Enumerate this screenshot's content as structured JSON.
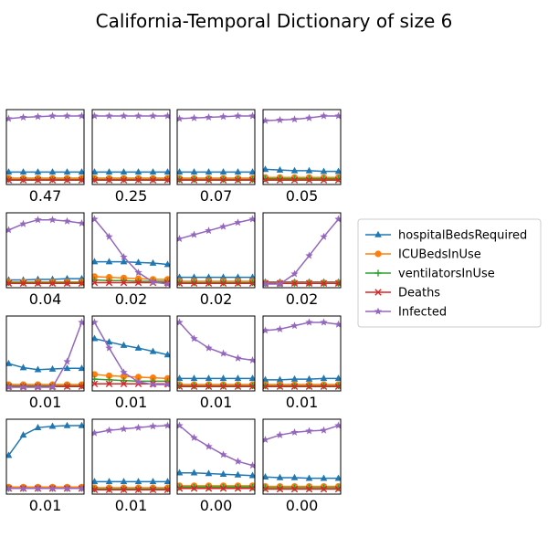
{
  "chart_data": {
    "type": "line",
    "title": "California-Temporal Dictionary of size 6",
    "legend_position": "right",
    "legend": [
      {
        "name": "hospitalBedsRequired",
        "color": "#1f77b4",
        "marker": "triangle"
      },
      {
        "name": "ICUBedsInUse",
        "color": "#ff7f0e",
        "marker": "circle"
      },
      {
        "name": "ventilatorsInUse",
        "color": "#2ca02c",
        "marker": "plus"
      },
      {
        "name": "Deaths",
        "color": "#d62728",
        "marker": "x"
      },
      {
        "name": "Infected",
        "color": "#9467bd",
        "marker": "star"
      }
    ],
    "x": [
      0,
      1,
      2,
      3,
      4,
      5
    ],
    "ylim": [
      0,
      1
    ],
    "panels": [
      {
        "label": "0.47",
        "series": [
          [
            0.13,
            0.13,
            0.13,
            0.13,
            0.13,
            0.13
          ],
          [
            0.04,
            0.04,
            0.04,
            0.04,
            0.04,
            0.04
          ],
          [
            0.02,
            0.02,
            0.02,
            0.02,
            0.02,
            0.02
          ],
          [
            0.01,
            0.01,
            0.01,
            0.01,
            0.01,
            0.01
          ],
          [
            0.92,
            0.94,
            0.95,
            0.96,
            0.96,
            0.96
          ]
        ]
      },
      {
        "label": "0.25",
        "series": [
          [
            0.13,
            0.13,
            0.13,
            0.13,
            0.13,
            0.13
          ],
          [
            0.04,
            0.04,
            0.04,
            0.04,
            0.04,
            0.04
          ],
          [
            0.02,
            0.02,
            0.02,
            0.02,
            0.02,
            0.02
          ],
          [
            0.01,
            0.01,
            0.01,
            0.01,
            0.01,
            0.01
          ],
          [
            0.96,
            0.96,
            0.96,
            0.96,
            0.96,
            0.96
          ]
        ]
      },
      {
        "label": "0.07",
        "series": [
          [
            0.13,
            0.13,
            0.13,
            0.13,
            0.13,
            0.13
          ],
          [
            0.04,
            0.04,
            0.04,
            0.04,
            0.04,
            0.04
          ],
          [
            0.02,
            0.02,
            0.02,
            0.02,
            0.02,
            0.02
          ],
          [
            0.01,
            0.01,
            0.01,
            0.01,
            0.01,
            0.01
          ],
          [
            0.92,
            0.93,
            0.94,
            0.95,
            0.96,
            0.96
          ]
        ]
      },
      {
        "label": "0.05",
        "series": [
          [
            0.17,
            0.16,
            0.15,
            0.15,
            0.14,
            0.14
          ],
          [
            0.05,
            0.05,
            0.05,
            0.05,
            0.05,
            0.05
          ],
          [
            0.03,
            0.03,
            0.03,
            0.03,
            0.03,
            0.03
          ],
          [
            0.01,
            0.01,
            0.01,
            0.01,
            0.01,
            0.01
          ],
          [
            0.89,
            0.9,
            0.91,
            0.93,
            0.96,
            0.96
          ]
        ]
      },
      {
        "label": "0.04",
        "series": [
          [
            0.06,
            0.06,
            0.07,
            0.07,
            0.08,
            0.08
          ],
          [
            0.03,
            0.03,
            0.03,
            0.03,
            0.03,
            0.03
          ],
          [
            0.02,
            0.02,
            0.02,
            0.02,
            0.02,
            0.02
          ],
          [
            0.01,
            0.01,
            0.01,
            0.01,
            0.01,
            0.01
          ],
          [
            0.8,
            0.89,
            0.95,
            0.95,
            0.93,
            0.9
          ]
        ]
      },
      {
        "label": "0.02",
        "series": [
          [
            0.33,
            0.33,
            0.33,
            0.32,
            0.31,
            0.29
          ],
          [
            0.11,
            0.1,
            0.09,
            0.08,
            0.07,
            0.07
          ],
          [
            0.06,
            0.05,
            0.05,
            0.04,
            0.04,
            0.04
          ],
          [
            0.02,
            0.02,
            0.02,
            0.02,
            0.02,
            0.02
          ],
          [
            0.96,
            0.7,
            0.4,
            0.17,
            0.03,
            0.0
          ]
        ]
      },
      {
        "label": "0.02",
        "series": [
          [
            0.1,
            0.1,
            0.1,
            0.1,
            0.1,
            0.1
          ],
          [
            0.04,
            0.04,
            0.04,
            0.04,
            0.04,
            0.04
          ],
          [
            0.02,
            0.02,
            0.02,
            0.02,
            0.02,
            0.02
          ],
          [
            0.01,
            0.01,
            0.01,
            0.01,
            0.01,
            0.01
          ],
          [
            0.67,
            0.73,
            0.79,
            0.85,
            0.91,
            0.96
          ]
        ]
      },
      {
        "label": "0.02",
        "series": [
          [
            0.03,
            0.03,
            0.03,
            0.03,
            0.03,
            0.03
          ],
          [
            0.02,
            0.02,
            0.02,
            0.02,
            0.02,
            0.02
          ],
          [
            0.01,
            0.01,
            0.01,
            0.01,
            0.01,
            0.01
          ],
          [
            0.01,
            0.01,
            0.01,
            0.01,
            0.01,
            0.01
          ],
          [
            0.0,
            0.0,
            0.15,
            0.42,
            0.7,
            0.96
          ]
        ]
      },
      {
        "label": "0.01",
        "series": [
          [
            0.35,
            0.29,
            0.26,
            0.27,
            0.28,
            0.28
          ],
          [
            0.04,
            0.04,
            0.04,
            0.04,
            0.04,
            0.04
          ],
          [
            0.02,
            0.02,
            0.02,
            0.02,
            0.02,
            0.02
          ],
          [
            0.01,
            0.01,
            0.01,
            0.01,
            0.01,
            0.01
          ],
          [
            0.0,
            0.0,
            0.0,
            0.0,
            0.38,
            0.96
          ]
        ]
      },
      {
        "label": "0.01",
        "series": [
          [
            0.72,
            0.67,
            0.62,
            0.58,
            0.53,
            0.48
          ],
          [
            0.19,
            0.17,
            0.16,
            0.15,
            0.14,
            0.13
          ],
          [
            0.12,
            0.11,
            0.1,
            0.09,
            0.09,
            0.09
          ],
          [
            0.05,
            0.05,
            0.05,
            0.05,
            0.05,
            0.05
          ],
          [
            0.96,
            0.58,
            0.22,
            0.08,
            0.04,
            0.04
          ]
        ]
      },
      {
        "label": "0.01",
        "series": [
          [
            0.13,
            0.13,
            0.13,
            0.13,
            0.13,
            0.13
          ],
          [
            0.04,
            0.04,
            0.04,
            0.04,
            0.04,
            0.04
          ],
          [
            0.02,
            0.02,
            0.02,
            0.02,
            0.02,
            0.02
          ],
          [
            0.01,
            0.01,
            0.01,
            0.01,
            0.01,
            0.01
          ],
          [
            0.96,
            0.72,
            0.58,
            0.5,
            0.43,
            0.4
          ]
        ]
      },
      {
        "label": "0.01",
        "series": [
          [
            0.11,
            0.11,
            0.12,
            0.12,
            0.13,
            0.13
          ],
          [
            0.04,
            0.04,
            0.04,
            0.04,
            0.04,
            0.04
          ],
          [
            0.02,
            0.02,
            0.02,
            0.02,
            0.02,
            0.02
          ],
          [
            0.01,
            0.01,
            0.01,
            0.01,
            0.01,
            0.01
          ],
          [
            0.84,
            0.86,
            0.91,
            0.96,
            0.96,
            0.93
          ]
        ]
      },
      {
        "label": "0.01",
        "series": [
          [
            0.52,
            0.82,
            0.93,
            0.95,
            0.96,
            0.96
          ],
          [
            0.05,
            0.05,
            0.05,
            0.05,
            0.05,
            0.05
          ],
          [
            0.03,
            0.03,
            0.03,
            0.03,
            0.03,
            0.03
          ],
          [
            0.03,
            0.03,
            0.03,
            0.03,
            0.03,
            0.03
          ],
          [
            0.03,
            0.03,
            0.03,
            0.03,
            0.03,
            0.03
          ]
        ]
      },
      {
        "label": "0.01",
        "series": [
          [
            0.13,
            0.13,
            0.13,
            0.13,
            0.13,
            0.13
          ],
          [
            0.04,
            0.04,
            0.04,
            0.04,
            0.04,
            0.04
          ],
          [
            0.02,
            0.02,
            0.02,
            0.02,
            0.02,
            0.02
          ],
          [
            0.01,
            0.01,
            0.01,
            0.01,
            0.01,
            0.01
          ],
          [
            0.85,
            0.89,
            0.91,
            0.93,
            0.95,
            0.96
          ]
        ]
      },
      {
        "label": "0.00",
        "series": [
          [
            0.26,
            0.26,
            0.25,
            0.24,
            0.23,
            0.22
          ],
          [
            0.07,
            0.07,
            0.07,
            0.07,
            0.07,
            0.07
          ],
          [
            0.05,
            0.05,
            0.05,
            0.05,
            0.05,
            0.05
          ],
          [
            0.03,
            0.03,
            0.03,
            0.03,
            0.03,
            0.03
          ],
          [
            0.96,
            0.78,
            0.65,
            0.53,
            0.43,
            0.37
          ]
        ]
      },
      {
        "label": "0.00",
        "series": [
          [
            0.2,
            0.19,
            0.19,
            0.18,
            0.18,
            0.18
          ],
          [
            0.06,
            0.06,
            0.06,
            0.06,
            0.06,
            0.06
          ],
          [
            0.04,
            0.04,
            0.04,
            0.04,
            0.04,
            0.04
          ],
          [
            0.02,
            0.02,
            0.02,
            0.02,
            0.02,
            0.02
          ],
          [
            0.75,
            0.82,
            0.86,
            0.88,
            0.89,
            0.96
          ]
        ]
      }
    ]
  }
}
